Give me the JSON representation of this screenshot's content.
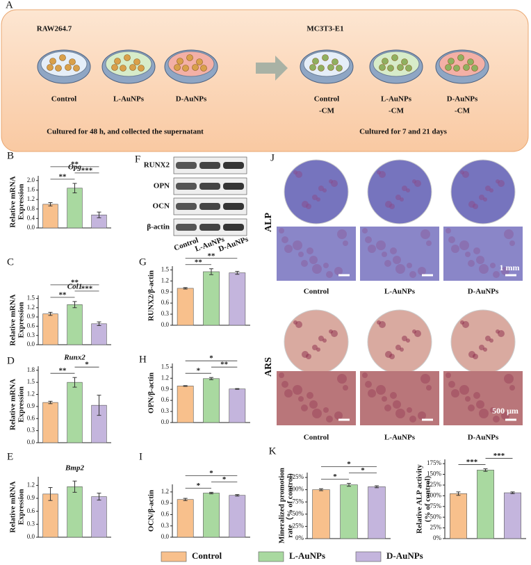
{
  "panel_a": {
    "letter": "A",
    "left_title": "RAW264.7",
    "right_title": "MC3T3-E1",
    "left_dishes": [
      "Control",
      "L-AuNPs",
      "D-AuNPs"
    ],
    "right_dishes": [
      [
        "Control",
        "-CM"
      ],
      [
        "L-AuNPs",
        "-CM"
      ],
      [
        "D-AuNPs",
        "-CM"
      ]
    ],
    "left_caption": "Cultured for 48 h, and collected the supernatant",
    "right_caption": "Cultured for 7 and 21 days"
  },
  "blot": {
    "letter": "F",
    "rows": [
      "RUNX2",
      "OPN",
      "OCN",
      "β-actin"
    ],
    "lanes": [
      "Control",
      "L-AuNPs",
      "D-AuNPs"
    ]
  },
  "panel_j": {
    "letter": "J",
    "stains": [
      "ALP",
      "ARS"
    ],
    "groups": [
      "Control",
      "L-AuNPs",
      "D-AuNPs"
    ],
    "scale_alp": "1 mm",
    "scale_ars": "500 μm"
  },
  "panel_k_letter": "K",
  "legend": [
    {
      "name": "Control",
      "color": "#f8c08c"
    },
    {
      "name": "L-AuNPs",
      "color": "#a9d9a0"
    },
    {
      "name": "D-AuNPs",
      "color": "#c4b5dd"
    }
  ],
  "chart_data": [
    {
      "type": "bar",
      "panel": "B",
      "title": "Opg",
      "ylabel": [
        "Relative mRNA",
        "Expression"
      ],
      "values": [
        1.0,
        1.68,
        0.55
      ],
      "errors": [
        0.07,
        0.2,
        0.12
      ],
      "ylim": [
        0,
        2.2
      ],
      "yticks": [
        {
          "value": 0,
          "label": "0.0"
        },
        0.4,
        0.8,
        1.2,
        1.6,
        {
          "value": 2,
          "label": "2.0"
        }
      ],
      "brackets": [
        {
          "label": "**",
          "between": [
            0,
            1
          ]
        },
        {
          "label": "***",
          "between": [
            1,
            2
          ]
        },
        {
          "label": "**",
          "between": [
            0,
            2
          ]
        }
      ]
    },
    {
      "type": "bar",
      "panel": "C",
      "title": "Col1",
      "ylabel": [
        "Relative mRNA",
        "Expression"
      ],
      "values": [
        1.0,
        1.3,
        0.68
      ],
      "errors": [
        0.05,
        0.1,
        0.06
      ],
      "ylim": [
        0,
        1.6
      ],
      "yticks": [
        {
          "value": 0,
          "label": "0.0"
        },
        0.3,
        0.6,
        0.9,
        1.2,
        1.5
      ],
      "brackets": [
        {
          "label": "**",
          "between": [
            0,
            1
          ]
        },
        {
          "label": "***",
          "between": [
            1,
            2
          ]
        },
        {
          "label": "**",
          "between": [
            0,
            2
          ]
        }
      ]
    },
    {
      "type": "bar",
      "panel": "D",
      "title": "Runx2",
      "ylabel": [
        "Relative mRNA",
        "Expression"
      ],
      "values": [
        1.0,
        1.5,
        0.93
      ],
      "errors": [
        0.03,
        0.12,
        0.25
      ],
      "ylim": [
        0,
        1.9
      ],
      "yticks": [
        {
          "value": 0,
          "label": "0.0"
        },
        0.3,
        0.6,
        0.9,
        1.2,
        1.5,
        1.8
      ],
      "brackets": [
        {
          "label": "**",
          "between": [
            0,
            1
          ]
        },
        {
          "label": "*",
          "between": [
            1,
            2
          ]
        }
      ]
    },
    {
      "type": "bar",
      "panel": "E",
      "title": "Bmp2",
      "ylabel": [
        "Relative mRNA",
        "Expression"
      ],
      "values": [
        1.0,
        1.17,
        0.94
      ],
      "errors": [
        0.15,
        0.13,
        0.08
      ],
      "ylim": [
        0,
        1.4
      ],
      "yticks": [
        {
          "value": 0,
          "label": "0.0"
        },
        0.3,
        0.6,
        0.9,
        1.2
      ],
      "brackets": []
    },
    {
      "type": "bar",
      "panel": "G",
      "ylabel": [
        "RUNX2/β-actin"
      ],
      "values": [
        1.0,
        1.45,
        1.42
      ],
      "errors": [
        0.02,
        0.08,
        0.04
      ],
      "ylim": [
        0,
        1.6
      ],
      "yticks": [
        {
          "value": 0,
          "label": "0.0"
        },
        0.3,
        0.6,
        0.9,
        1.2,
        1.5
      ],
      "brackets": [
        {
          "label": "**",
          "between": [
            0,
            1
          ]
        },
        {
          "label": "**",
          "between": [
            0,
            2
          ]
        }
      ]
    },
    {
      "type": "bar",
      "panel": "H",
      "ylabel": [
        "OPN/β-actin"
      ],
      "values": [
        0.99,
        1.19,
        0.91
      ],
      "errors": [
        0.01,
        0.03,
        0.01
      ],
      "ylim": [
        0,
        1.6
      ],
      "yticks": [
        {
          "value": 0,
          "label": "0.0"
        },
        0.3,
        0.6,
        0.9,
        1.2,
        1.5
      ],
      "brackets": [
        {
          "label": "*",
          "between": [
            0,
            1
          ]
        },
        {
          "label": "**",
          "between": [
            1,
            2
          ]
        },
        {
          "label": "*",
          "between": [
            0,
            2
          ]
        }
      ]
    },
    {
      "type": "bar",
      "panel": "I",
      "ylabel": [
        "OCN/β-actin"
      ],
      "values": [
        1.0,
        1.17,
        1.11
      ],
      "errors": [
        0.03,
        0.02,
        0.02
      ],
      "ylim": [
        0,
        1.4
      ],
      "yticks": [
        {
          "value": 0,
          "label": "0.0"
        },
        0.3,
        0.6,
        0.9,
        1.2
      ],
      "brackets": [
        {
          "label": "*",
          "between": [
            0,
            1
          ]
        },
        {
          "label": "*",
          "between": [
            1,
            2
          ]
        },
        {
          "label": "*",
          "between": [
            0,
            2
          ]
        }
      ]
    },
    {
      "type": "bar",
      "ylabel": [
        "Mineralized promotion",
        "rate（% of control)"
      ],
      "values": [
        100,
        110,
        106
      ],
      "errors": [
        2,
        3,
        2
      ],
      "ylim": [
        0,
        135
      ],
      "yticks": [
        {
          "value": 0,
          "label": "0%"
        },
        {
          "value": 25,
          "label": "25%"
        },
        {
          "value": 50,
          "label": "50%"
        },
        {
          "value": 75,
          "label": "75%"
        },
        {
          "value": 100,
          "label": "100%"
        },
        {
          "value": 125,
          "label": "125%"
        }
      ],
      "brackets": [
        {
          "label": "*",
          "between": [
            0,
            1
          ]
        },
        {
          "label": "*",
          "between": [
            1,
            2
          ]
        },
        {
          "label": "*",
          "between": [
            0,
            2
          ]
        }
      ]
    },
    {
      "type": "bar",
      "ylabel": [
        "Relative ALP activity",
        "(% of control)"
      ],
      "values": [
        105,
        160,
        107
      ],
      "errors": [
        4,
        3,
        2
      ],
      "ylim": [
        0,
        185
      ],
      "yticks": [
        {
          "value": 0,
          "label": "0%"
        },
        {
          "value": 25,
          "label": "25%"
        },
        {
          "value": 50,
          "label": "50%"
        },
        {
          "value": 75,
          "label": "75%"
        },
        {
          "value": 100,
          "label": "100%"
        },
        {
          "value": 125,
          "label": "125%"
        },
        {
          "value": 150,
          "label": "150%"
        },
        {
          "value": 175,
          "label": "175%"
        }
      ],
      "brackets": [
        {
          "label": "***",
          "between": [
            0,
            1
          ]
        },
        {
          "label": "***",
          "between": [
            1,
            2
          ]
        }
      ]
    }
  ]
}
